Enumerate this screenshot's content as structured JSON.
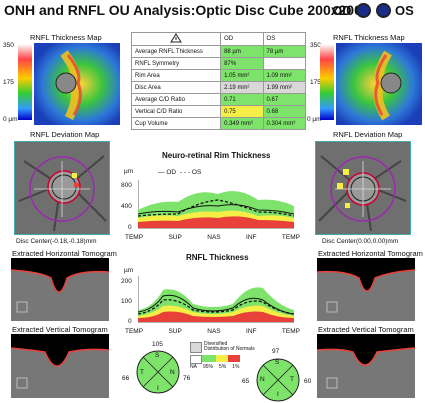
{
  "header": {
    "title": "ONH and RNFL OU Analysis:Optic Disc Cube 200x200",
    "od_label": "OD",
    "os_label": "OS"
  },
  "thickness_map": {
    "title": "RNFL Thickness Map",
    "scale_top": "350",
    "scale_mid": "175",
    "scale_bottom": "0 µm"
  },
  "deviation_map": {
    "title": "RNFL Deviation Map"
  },
  "metrics": {
    "col_od": "OD",
    "col_os": "OS",
    "rows": [
      {
        "label": "Average RNFL Thickness",
        "od": "88 µm",
        "os": "78 µm",
        "od_status": "ok",
        "os_status": "ok"
      },
      {
        "label": "RNFL Symmetry",
        "od": "87%",
        "os": "",
        "od_status": "ok",
        "os_status": "none"
      },
      {
        "label": "Rim Area",
        "od": "1.05 mm²",
        "os": "1.09 mm²",
        "od_status": "ok",
        "os_status": "ok"
      },
      {
        "label": "Disc Area",
        "od": "2.19 mm²",
        "os": "1.99 mm²",
        "od_status": "gray",
        "os_status": "gray"
      },
      {
        "label": "Average C/D Ratio",
        "od": "0.71",
        "os": "0.67",
        "od_status": "ok",
        "os_status": "ok"
      },
      {
        "label": "Vertical C/D Ratio",
        "od": "0.75",
        "os": "0.68",
        "od_status": "warn",
        "os_status": "ok"
      },
      {
        "label": "Cup Volume",
        "od": "0.349 mm³",
        "os": "0.304 mm³",
        "od_status": "ok",
        "os_status": "ok"
      }
    ]
  },
  "rim_chart": {
    "title": "Neuro-retinal Rim Thickness",
    "unit": "µm",
    "legend_od": "OD",
    "legend_os": "OS",
    "yticks": [
      "800",
      "400",
      "0"
    ],
    "xticks": [
      "TEMP",
      "SUP",
      "NAS",
      "INF",
      "TEMP"
    ]
  },
  "rnfl_chart": {
    "title": "RNFL Thickness",
    "unit": "µm",
    "yticks": [
      "200",
      "100",
      "0"
    ],
    "xticks": [
      "TEMP",
      "SUP",
      "NAS",
      "INF",
      "TEMP"
    ]
  },
  "disc_center": {
    "od": "Disc Center(-0.18,-0.18)mm",
    "os": "Disc Center(0.00,0.00)mm"
  },
  "tomograms": {
    "horizontal": "Extracted Horizontal Tomogram",
    "vertical": "Extracted Vertical Tomogram"
  },
  "quadrants": {
    "od": {
      "top": "105",
      "left": "66",
      "right": "76",
      "bottom": "",
      "s": "S",
      "n": "N",
      "i": "I",
      "t": "T"
    },
    "os": {
      "top": "97",
      "left": "65",
      "right": "60",
      "bottom": "",
      "s": "S",
      "n": "N",
      "i": "I",
      "t": "T"
    }
  },
  "legend": {
    "title": "Diversified",
    "subtitle": "Distribution of Normals",
    "na": "NA",
    "p95": "95%",
    "p5": "5%",
    "p1": "1%"
  },
  "colors": {
    "green": "#7ee36a",
    "yellow": "#f5ee46",
    "red": "#e8413a",
    "blue": "#1a2d8a"
  }
}
